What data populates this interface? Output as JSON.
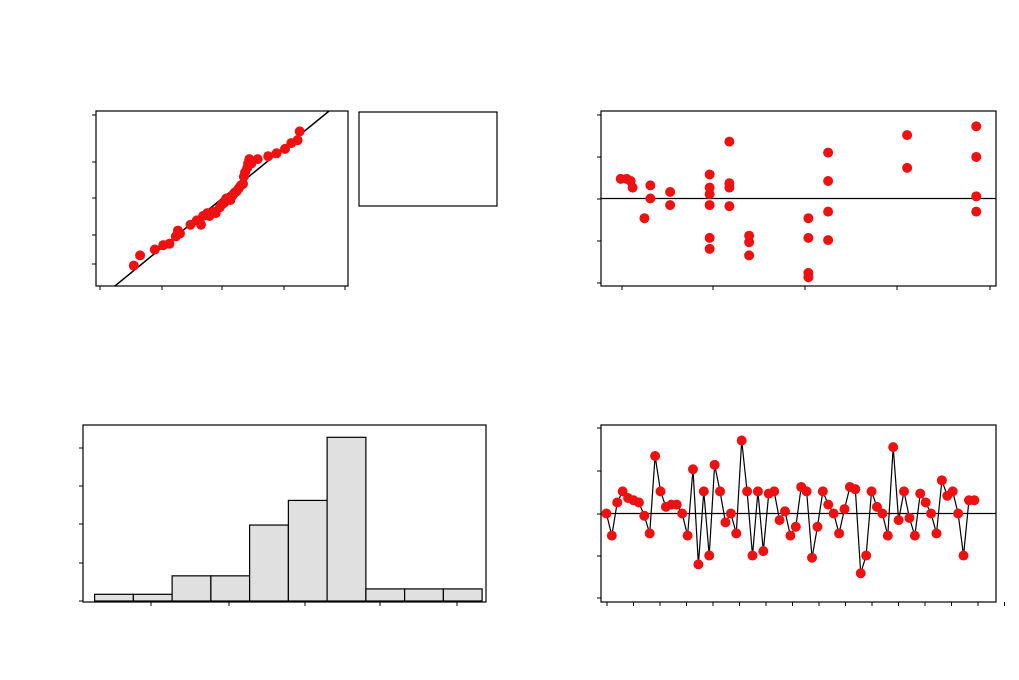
{
  "colors": {
    "point": "#ee1111",
    "line": "#000000",
    "bar_fill": "#e0e0e0",
    "frame": "#000000"
  },
  "chart_data": [
    {
      "type": "scatter",
      "position": "top-left",
      "xlim": [
        -3,
        3
      ],
      "ylim": [
        -3.0,
        3.0
      ],
      "fit_line": [
        [
          -2.55,
          -3.0
        ],
        [
          2.55,
          3.0
        ]
      ],
      "legend_box": true,
      "points": [
        [
          -2.1,
          -2.3
        ],
        [
          -1.95,
          -1.95
        ],
        [
          -1.6,
          -1.75
        ],
        [
          -1.4,
          -1.6
        ],
        [
          -1.25,
          -1.55
        ],
        [
          -1.1,
          -1.3
        ],
        [
          -1.05,
          -1.1
        ],
        [
          -1.0,
          -1.2
        ],
        [
          -0.75,
          -0.9
        ],
        [
          -0.6,
          -0.75
        ],
        [
          -0.5,
          -0.9
        ],
        [
          -0.45,
          -0.6
        ],
        [
          -0.35,
          -0.5
        ],
        [
          -0.3,
          -0.6
        ],
        [
          -0.2,
          -0.45
        ],
        [
          -0.15,
          -0.5
        ],
        [
          -0.05,
          -0.3
        ],
        [
          0.0,
          -0.2
        ],
        [
          0.05,
          -0.15
        ],
        [
          0.1,
          0.0
        ],
        [
          0.2,
          -0.05
        ],
        [
          0.25,
          0.1
        ],
        [
          0.3,
          0.2
        ],
        [
          0.35,
          0.25
        ],
        [
          0.4,
          0.35
        ],
        [
          0.45,
          0.45
        ],
        [
          0.5,
          0.5
        ],
        [
          0.52,
          0.75
        ],
        [
          0.55,
          0.9
        ],
        [
          0.6,
          1.05
        ],
        [
          0.62,
          1.2
        ],
        [
          0.65,
          1.35
        ],
        [
          0.7,
          1.2
        ],
        [
          0.85,
          1.35
        ],
        [
          1.1,
          1.45
        ],
        [
          1.3,
          1.55
        ],
        [
          1.5,
          1.7
        ],
        [
          1.65,
          1.9
        ],
        [
          1.8,
          2.0
        ],
        [
          1.85,
          2.3
        ]
      ]
    },
    {
      "type": "scatter",
      "position": "top-right",
      "xlim": [
        -1,
        19
      ],
      "ylim": [
        -4,
        4
      ],
      "hline": 0,
      "points": [
        [
          0,
          0.9
        ],
        [
          0.3,
          0.9
        ],
        [
          0.5,
          0.8
        ],
        [
          0.6,
          0.5
        ],
        [
          1.2,
          -0.9
        ],
        [
          1.5,
          0.6
        ],
        [
          1.5,
          0.0
        ],
        [
          2.5,
          0.3
        ],
        [
          2.5,
          -0.3
        ],
        [
          4.5,
          1.1
        ],
        [
          4.5,
          0.5
        ],
        [
          4.5,
          0.2
        ],
        [
          4.5,
          -0.3
        ],
        [
          4.5,
          -1.8
        ],
        [
          4.5,
          -2.3
        ],
        [
          5.5,
          2.6
        ],
        [
          5.5,
          0.7
        ],
        [
          5.5,
          0.5
        ],
        [
          5.5,
          -0.35
        ],
        [
          6.5,
          -1.7
        ],
        [
          6.5,
          -2.0
        ],
        [
          6.5,
          -2.6
        ],
        [
          9.5,
          -0.9
        ],
        [
          9.5,
          -1.8
        ],
        [
          9.5,
          -3.4
        ],
        [
          9.5,
          -3.6
        ],
        [
          10.5,
          2.1
        ],
        [
          10.5,
          0.8
        ],
        [
          10.5,
          -0.6
        ],
        [
          10.5,
          -1.9
        ],
        [
          14.5,
          2.9
        ],
        [
          14.5,
          1.4
        ],
        [
          18,
          3.3
        ],
        [
          18,
          1.9
        ],
        [
          18,
          0.1
        ],
        [
          18,
          -0.6
        ]
      ]
    },
    {
      "type": "bar",
      "position": "bottom-left",
      "xlim": [
        -3.2,
        2.0
      ],
      "ylim": [
        0,
        11.5
      ],
      "bin_edges": [
        -3.05,
        -2.55,
        -2.05,
        -1.55,
        -1.05,
        -0.55,
        -0.05,
        0.45,
        0.95,
        1.45,
        1.95
      ],
      "counts": [
        0.5,
        0.5,
        1.7,
        1.7,
        5.0,
        6.6,
        10.7,
        0.85,
        0.85,
        0.85
      ]
    },
    {
      "type": "line",
      "position": "bottom-right",
      "xlim": [
        0,
        73
      ],
      "ylim": [
        -4,
        4
      ],
      "hline": 0,
      "values": [
        0.0,
        -1.0,
        0.5,
        1.0,
        0.7,
        0.6,
        0.5,
        -0.1,
        -0.9,
        2.6,
        1.0,
        0.3,
        0.4,
        0.4,
        0.0,
        -1.0,
        2.0,
        -2.3,
        1.0,
        -1.9,
        2.2,
        1.0,
        -0.4,
        0.0,
        -0.9,
        3.3,
        1.0,
        -1.9,
        1.0,
        -1.7,
        0.9,
        1.0,
        -0.3,
        0.1,
        -1.0,
        -0.6,
        1.2,
        1.0,
        -2.0,
        -0.6,
        1.0,
        0.4,
        0.0,
        -0.9,
        0.2,
        1.2,
        1.1,
        -2.7,
        -1.9,
        1.0,
        0.3,
        0.0,
        -1.0,
        3.0,
        -0.3,
        1.0,
        -0.2,
        -1.0,
        0.9,
        0.5,
        0.0,
        -0.9,
        1.5,
        0.8,
        1.0,
        0.0,
        -1.9,
        0.6,
        0.6
      ]
    }
  ]
}
